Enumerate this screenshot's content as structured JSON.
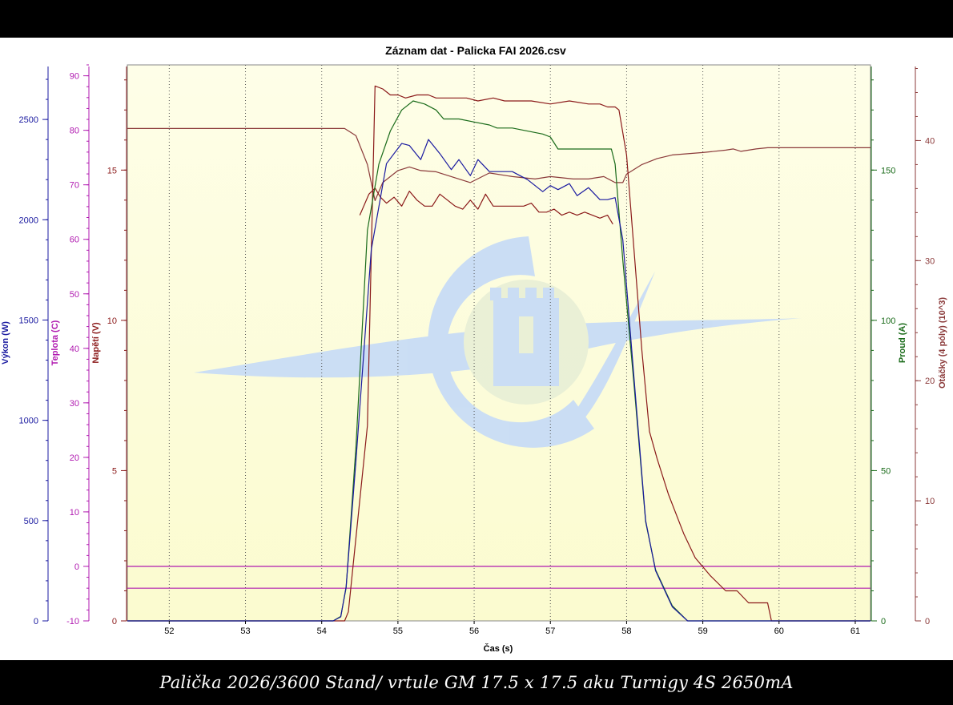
{
  "caption": "Palička 2026/3600 Stand/ vrtule GM 17.5 x 17.5 aku Turnigy 4S 2650mA",
  "colors": {
    "plot_background": "#ffffe0",
    "watermark": "#c9dcf5",
    "vykon": "#1a1aa0",
    "teplota": "#b01ab0",
    "napeti": "#8b1a1a",
    "proud": "#1a6b1a",
    "otacky": "#8b3a3a",
    "grid": "#555555"
  },
  "chart_data": {
    "type": "line",
    "title": "Záznam dat - Palicka FAI 2026.csv",
    "xlabel": "Čas (s)",
    "xlim": [
      51.45,
      61.2
    ],
    "xticks": [
      52,
      53,
      54,
      55,
      56,
      57,
      58,
      59,
      60,
      61
    ],
    "grid": "vertical dotted",
    "axes": {
      "vykon": {
        "label": "Výkon (W)",
        "range": [
          0,
          2772
        ],
        "ticks": [
          0,
          500,
          1000,
          1500,
          2000,
          2500
        ],
        "side": "left"
      },
      "teplota": {
        "label": "Teplota (C)",
        "range": [
          -10,
          92
        ],
        "ticks": [
          -10,
          0,
          10,
          20,
          30,
          40,
          50,
          60,
          70,
          80,
          90
        ],
        "side": "left"
      },
      "napeti": {
        "label": "Napětí (V)",
        "range": [
          0,
          18.5
        ],
        "ticks": [
          0,
          5,
          10,
          15
        ],
        "side": "left"
      },
      "proud": {
        "label": "Proud (A)",
        "range": [
          0,
          185
        ],
        "ticks": [
          0,
          50,
          100,
          150
        ],
        "side": "right"
      },
      "otacky": {
        "label": "Otáčky (4 póly) (10^3)",
        "range": [
          0,
          46.3
        ],
        "ticks": [
          0,
          10,
          20,
          30,
          40
        ],
        "side": "right"
      }
    },
    "series": [
      {
        "key": "vykon",
        "axis": "vykon",
        "x": [
          51.45,
          54.15,
          54.25,
          54.32,
          54.45,
          54.65,
          54.85,
          55.05,
          55.15,
          55.3,
          55.4,
          55.55,
          55.7,
          55.8,
          55.95,
          56.05,
          56.2,
          56.35,
          56.5,
          56.7,
          56.9,
          57.0,
          57.1,
          57.25,
          57.35,
          57.5,
          57.65,
          57.75,
          57.85,
          57.95,
          58.1,
          58.25,
          58.38,
          58.6,
          58.8,
          61.2
        ],
        "y": [
          0,
          0,
          20,
          170,
          800,
          1850,
          2280,
          2380,
          2370,
          2300,
          2400,
          2330,
          2250,
          2300,
          2220,
          2300,
          2240,
          2240,
          2240,
          2200,
          2140,
          2170,
          2150,
          2180,
          2120,
          2160,
          2100,
          2100,
          2110,
          1900,
          1200,
          500,
          250,
          70,
          0,
          0
        ]
      },
      {
        "key": "proud",
        "axis": "proud",
        "x": [
          51.45,
          54.15,
          54.25,
          54.32,
          54.45,
          54.6,
          54.75,
          54.9,
          55.05,
          55.2,
          55.35,
          55.5,
          55.6,
          55.8,
          56.0,
          56.2,
          56.3,
          56.5,
          56.9,
          57.0,
          57.1,
          57.5,
          57.7,
          57.8,
          57.85,
          57.95,
          58.1,
          58.25,
          58.38,
          58.6,
          58.8,
          61.2
        ],
        "y": [
          0,
          0,
          1.5,
          11,
          58,
          130,
          152,
          163,
          170,
          173,
          172,
          170,
          167,
          167,
          166,
          165,
          164,
          164,
          162,
          161,
          157,
          157,
          157,
          157,
          152,
          120,
          78,
          33,
          17,
          5,
          0,
          0
        ]
      },
      {
        "key": "napeti_input",
        "axis": "napeti",
        "x": [
          51.45,
          54.3,
          54.35,
          54.6,
          54.7,
          54.8,
          54.9,
          55.0,
          55.1,
          55.25,
          55.4,
          55.5,
          55.6,
          55.75,
          55.9,
          56.05,
          56.25,
          56.4,
          56.5,
          56.75,
          57.0,
          57.25,
          57.5,
          57.65,
          57.75,
          57.85,
          57.9,
          58.0,
          58.2,
          58.3,
          58.4,
          58.55,
          58.75,
          58.9,
          59.1,
          59.3,
          59.45,
          59.6,
          59.85,
          59.9,
          61.2
        ],
        "y": [
          0,
          0,
          0.3,
          6.5,
          17.8,
          17.7,
          17.5,
          17.5,
          17.4,
          17.5,
          17.5,
          17.4,
          17.4,
          17.4,
          17.4,
          17.3,
          17.4,
          17.3,
          17.3,
          17.3,
          17.2,
          17.3,
          17.2,
          17.2,
          17.1,
          17.1,
          17.0,
          15.5,
          9.0,
          6.3,
          5.4,
          4.2,
          2.9,
          2.1,
          1.5,
          1.0,
          1.0,
          0.6,
          0.6,
          0,
          0
        ]
      },
      {
        "key": "napeti_load",
        "axis": "napeti",
        "x": [
          54.5,
          54.62,
          54.7,
          54.77,
          54.85,
          54.95,
          55.05,
          55.15,
          55.25,
          55.35,
          55.45,
          55.55,
          55.65,
          55.75,
          55.85,
          55.95,
          56.05,
          56.15,
          56.25,
          56.4,
          56.55,
          56.65,
          56.75,
          56.85,
          56.95,
          57.05,
          57.15,
          57.25,
          57.35,
          57.45,
          57.55,
          57.65,
          57.75,
          57.82
        ],
        "y": [
          13.5,
          14.2,
          14.4,
          14.1,
          13.9,
          14.1,
          13.8,
          14.3,
          14.0,
          13.8,
          13.8,
          14.2,
          14.0,
          13.8,
          13.7,
          14.0,
          13.7,
          14.2,
          13.8,
          13.8,
          13.8,
          13.8,
          13.9,
          13.6,
          13.6,
          13.7,
          13.5,
          13.6,
          13.5,
          13.6,
          13.5,
          13.4,
          13.5,
          13.2
        ]
      },
      {
        "key": "otacky",
        "axis": "otacky",
        "x": [
          51.45,
          54.3,
          54.45,
          54.6,
          54.7,
          54.8,
          54.9,
          55.0,
          55.15,
          55.3,
          55.5,
          55.7,
          55.95,
          56.2,
          56.5,
          56.8,
          57.0,
          57.3,
          57.5,
          57.7,
          57.85,
          57.95,
          58.0,
          58.2,
          58.4,
          58.6,
          58.8,
          59.0,
          59.3,
          59.4,
          59.5,
          59.7,
          59.85,
          61.2
        ],
        "y": [
          41.0,
          41.0,
          40.4,
          38.0,
          35.0,
          36.5,
          37.0,
          37.5,
          37.8,
          37.5,
          37.4,
          37.0,
          36.5,
          37.3,
          37.0,
          36.8,
          37.0,
          36.8,
          36.8,
          37.0,
          36.5,
          36.5,
          37.2,
          38.0,
          38.5,
          38.8,
          38.9,
          39.0,
          39.2,
          39.3,
          39.1,
          39.3,
          39.4,
          39.4
        ]
      },
      {
        "key": "teplota_1",
        "axis": "teplota",
        "x": [
          51.45,
          61.2
        ],
        "y": [
          0,
          0
        ]
      },
      {
        "key": "teplota_2",
        "axis": "teplota",
        "x": [
          51.45,
          61.2
        ],
        "y": [
          -4,
          -4
        ]
      }
    ]
  }
}
